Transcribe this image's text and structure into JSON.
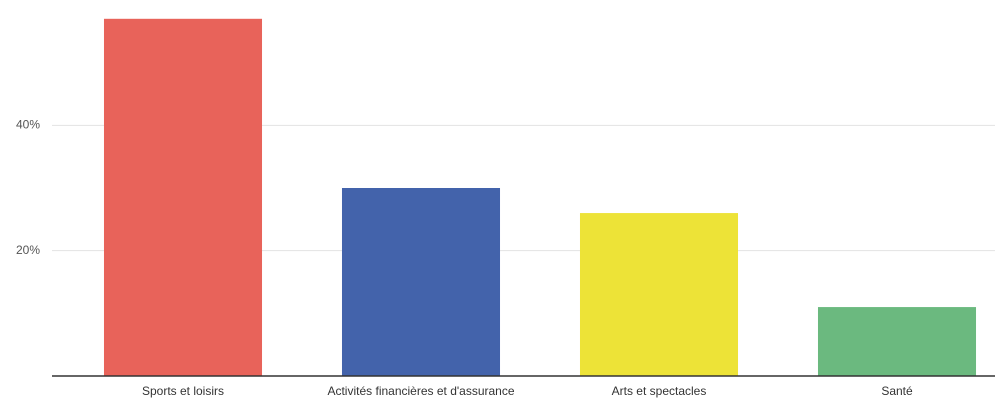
{
  "chart_data": {
    "type": "bar",
    "categories": [
      "Sports et loisirs",
      "Activités financières et d'assurance",
      "Arts et spectacles",
      "Santé"
    ],
    "values": [
      57,
      30,
      26,
      11
    ],
    "colors": [
      "#e8635a",
      "#4363ab",
      "#ede337",
      "#6bb97f"
    ],
    "ylim": [
      0,
      60
    ],
    "yticks": [
      {
        "value": 20,
        "label": "20%"
      },
      {
        "value": 40,
        "label": "40%"
      }
    ],
    "grid": true
  }
}
